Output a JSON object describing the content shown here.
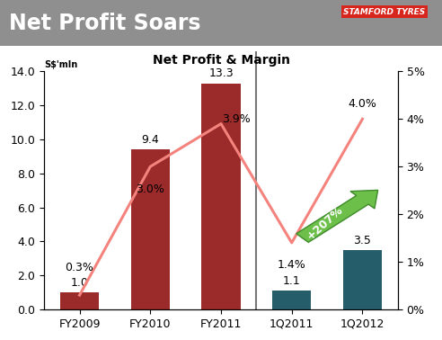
{
  "header": {
    "title": "Net Profit Soars",
    "logo": "STAMFORD TYRES"
  },
  "chart_data": {
    "type": "bar_line",
    "title": "Net Profit & Margin",
    "y_label": "S$'mln",
    "categories": [
      "FY2009",
      "FY2010",
      "FY2011",
      "1Q2011",
      "1Q2012"
    ],
    "series": [
      {
        "type": "bar",
        "colors": [
          "#9b2a2a",
          "#9b2a2a",
          "#9b2a2a",
          "#255e6a",
          "#255e6a"
        ],
        "values": [
          1.0,
          9.4,
          13.3,
          1.1,
          3.5
        ],
        "value_labels": [
          "1.0",
          "9.4",
          "13.3",
          "1.1",
          "3.5"
        ]
      },
      {
        "type": "line",
        "axis": "y2",
        "color": "#f4837d",
        "values": [
          0.3,
          3.0,
          3.9,
          1.4,
          4.0
        ],
        "value_labels": [
          "0.3%",
          "3.0%",
          "3.9%",
          "1.4%",
          "4.0%"
        ]
      }
    ],
    "annotation": "+207%",
    "data_labels": true,
    "grid": false,
    "ylim": [
      0,
      14
    ],
    "yticks": [
      {
        "value": 0,
        "label": "0.0"
      },
      {
        "value": 2,
        "label": "2.0"
      },
      {
        "value": 4,
        "label": "4.0"
      },
      {
        "value": 6,
        "label": "6.0"
      },
      {
        "value": 8,
        "label": "8.0"
      },
      {
        "value": 10,
        "label": "10.0"
      },
      {
        "value": 12,
        "label": "12.0"
      },
      {
        "value": 14,
        "label": "14.0"
      }
    ],
    "y2lim": [
      0,
      5
    ],
    "y2ticks": [
      {
        "value": 0,
        "label": "0%"
      },
      {
        "value": 1,
        "label": "1%"
      },
      {
        "value": 2,
        "label": "2%"
      },
      {
        "value": 3,
        "label": "3%"
      },
      {
        "value": 4,
        "label": "4%"
      },
      {
        "value": 5,
        "label": "5%"
      }
    ]
  }
}
